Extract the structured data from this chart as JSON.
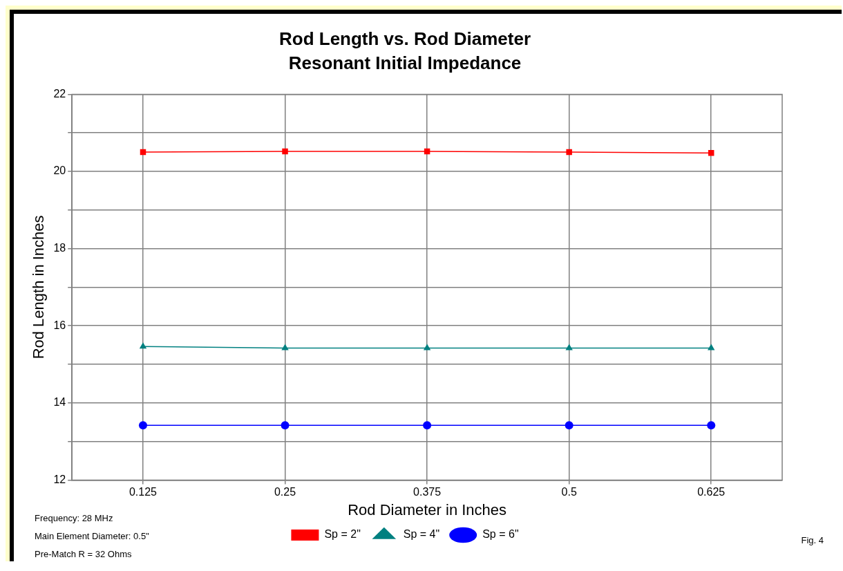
{
  "chart_data": {
    "type": "line",
    "title": "Rod Length vs. Rod Diameter",
    "subtitle": "Resonant Initial Impedance",
    "xlabel": "Rod Diameter in Inches",
    "ylabel": "Rod Length in Inches",
    "categories": [
      "0.125",
      "0.25",
      "0.375",
      "0.5",
      "0.625"
    ],
    "series": [
      {
        "name": "Sp = 2\"",
        "color": "#ff0000",
        "marker": "square",
        "values": [
          20.5,
          20.52,
          20.52,
          20.5,
          20.48
        ]
      },
      {
        "name": "Sp = 4\"",
        "color": "#008080",
        "marker": "triangle",
        "values": [
          15.46,
          15.42,
          15.42,
          15.42,
          15.42
        ]
      },
      {
        "name": "Sp = 6\"",
        "color": "#0000ff",
        "marker": "circle",
        "values": [
          13.42,
          13.42,
          13.42,
          13.42,
          13.42
        ]
      }
    ],
    "ylim": [
      12,
      22
    ],
    "yticks": [
      12,
      {
        "value": 13,
        "label": null
      },
      14,
      {
        "value": 15,
        "label": null
      },
      16,
      {
        "value": 17,
        "label": null
      },
      18,
      {
        "value": 19,
        "label": null
      },
      20,
      {
        "value": 21,
        "label": null
      },
      22
    ],
    "grid": true,
    "legend": "bottom",
    "line_style": "solid",
    "annotations": [
      "Frequency: 28 MHz",
      "Main Element Diameter: 0.5\"",
      "Pre-Match R = 32 Ohms",
      "Fig. 4"
    ]
  }
}
